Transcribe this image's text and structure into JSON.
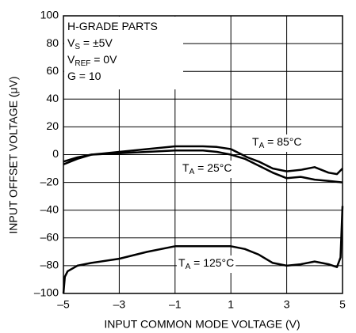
{
  "chart_data": {
    "type": "line",
    "x_label": "INPUT COMMON MODE VOLTAGE (V)",
    "y_label": "INPUT OFFSET VOLTAGE (μV)",
    "annotations": [
      {
        "main": "H-GRADE PARTS"
      },
      {
        "main": "V",
        "sub": "S",
        "rest": " = ±5V"
      },
      {
        "main": "V",
        "sub": "REF",
        "rest": " = 0V"
      },
      {
        "main": "G = 10"
      }
    ],
    "xlim": [
      -5,
      5
    ],
    "ylim": [
      -100,
      100
    ],
    "xticks": [
      {
        "value": -5,
        "label": "–5"
      },
      {
        "value": -3,
        "label": "–3"
      },
      {
        "value": -1,
        "label": "–1"
      },
      1,
      3,
      5
    ],
    "yticks": [
      {
        "value": -100,
        "label": "–100"
      },
      {
        "value": -80,
        "label": "–80"
      },
      {
        "value": -60,
        "label": "–60"
      },
      {
        "value": -40,
        "label": "–40"
      },
      {
        "value": -20,
        "label": "–20"
      },
      0,
      20,
      40,
      60,
      80,
      100
    ],
    "grid": true,
    "series": [
      {
        "name": {
          "main": "T",
          "sub": "A",
          "rest": " = 85°C"
        },
        "color": "#000000",
        "x": [
          -5,
          -4.5,
          -4,
          -3,
          -2,
          -1,
          0,
          0.5,
          1,
          1.3,
          1.6,
          2,
          2.5,
          3,
          3.5,
          4,
          4.5,
          4.8,
          5
        ],
        "values": [
          -7,
          -3,
          0,
          2,
          4,
          6,
          6,
          5.5,
          4,
          1,
          -2,
          -5,
          -10,
          -12,
          -11,
          -9,
          -13,
          -14,
          -10
        ]
      },
      {
        "name": {
          "main": "T",
          "sub": "A",
          "rest": " = 25°C"
        },
        "color": "#000000",
        "x": [
          -5,
          -4.5,
          -4,
          -3,
          -2,
          -1,
          0,
          0.5,
          1,
          1.5,
          2,
          2.5,
          3,
          3.5,
          4,
          4.5,
          5
        ],
        "values": [
          -5,
          -2,
          0,
          1,
          2,
          3,
          3,
          2,
          0,
          -3,
          -8,
          -13,
          -17,
          -16,
          -18,
          -19,
          -20
        ]
      },
      {
        "name": {
          "main": "T",
          "sub": "A",
          "rest": " = 125°C"
        },
        "color": "#000000",
        "x": [
          -5,
          -4.95,
          -4.85,
          -4.5,
          -4,
          -3,
          -2,
          -1,
          0,
          1,
          1.5,
          2,
          2.5,
          3,
          3.5,
          4,
          4.5,
          4.8,
          4.93,
          5
        ],
        "values": [
          -100,
          -88,
          -84,
          -80,
          -78,
          -75,
          -70,
          -66,
          -66,
          -66,
          -68,
          -72,
          -78,
          -80,
          -79,
          -77,
          -79,
          -81,
          -74,
          -37
        ]
      }
    ]
  }
}
